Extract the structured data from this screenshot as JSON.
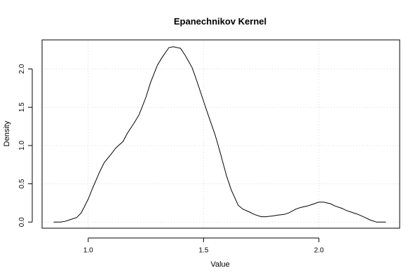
{
  "chart_data": {
    "type": "line",
    "title": "Epanechnikov Kernel",
    "xlabel": "Value",
    "ylabel": "Density",
    "xlim": [
      0.8,
      2.35
    ],
    "ylim": [
      -0.08,
      2.38
    ],
    "x_ticks": [
      1.0,
      1.5,
      2.0
    ],
    "x_tick_labels": [
      "1.0",
      "1.5",
      "2.0"
    ],
    "y_ticks": [
      0.0,
      0.5,
      1.0,
      1.5,
      2.0
    ],
    "y_tick_labels": [
      "0.0",
      "0.5",
      "1.0",
      "1.5",
      "2.0"
    ],
    "grid": true,
    "legend": "none",
    "series": [
      {
        "x": [
          0.85,
          0.88,
          0.9,
          0.92,
          0.95,
          0.97,
          1.0,
          1.02,
          1.05,
          1.07,
          1.1,
          1.12,
          1.15,
          1.17,
          1.2,
          1.22,
          1.25,
          1.27,
          1.3,
          1.32,
          1.35,
          1.37,
          1.4,
          1.42,
          1.45,
          1.47,
          1.5,
          1.52,
          1.55,
          1.57,
          1.6,
          1.62,
          1.65,
          1.67,
          1.7,
          1.72,
          1.75,
          1.77,
          1.8,
          1.82,
          1.85,
          1.87,
          1.9,
          1.92,
          1.95,
          1.97,
          2.0,
          2.02,
          2.05,
          2.07,
          2.1,
          2.12,
          2.15,
          2.17,
          2.2,
          2.22,
          2.25,
          2.27,
          2.29
        ],
        "y": [
          0.0,
          0.0,
          0.01,
          0.03,
          0.06,
          0.12,
          0.3,
          0.45,
          0.66,
          0.78,
          0.89,
          0.97,
          1.05,
          1.16,
          1.3,
          1.4,
          1.63,
          1.82,
          2.05,
          2.15,
          2.28,
          2.29,
          2.27,
          2.18,
          2.02,
          1.85,
          1.58,
          1.4,
          1.14,
          0.93,
          0.6,
          0.42,
          0.22,
          0.17,
          0.13,
          0.1,
          0.07,
          0.07,
          0.08,
          0.09,
          0.1,
          0.12,
          0.17,
          0.19,
          0.21,
          0.23,
          0.26,
          0.26,
          0.24,
          0.21,
          0.18,
          0.15,
          0.12,
          0.1,
          0.06,
          0.03,
          0.0,
          0.0,
          0.0
        ],
        "color": "#000000"
      }
    ]
  }
}
